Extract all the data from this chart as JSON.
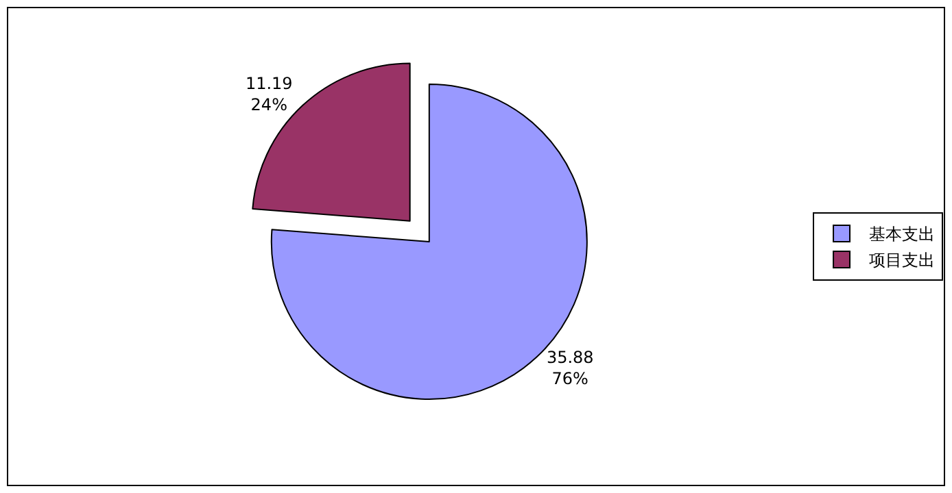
{
  "chart_data": {
    "type": "pie",
    "categories": [
      "基本支出",
      "项目支出"
    ],
    "values": [
      35.88,
      11.19
    ],
    "colors": [
      "#9999ff",
      "#993366"
    ],
    "value_labels": [
      "35.88\n76%",
      "11.19\n24%"
    ],
    "legend": "right"
  }
}
